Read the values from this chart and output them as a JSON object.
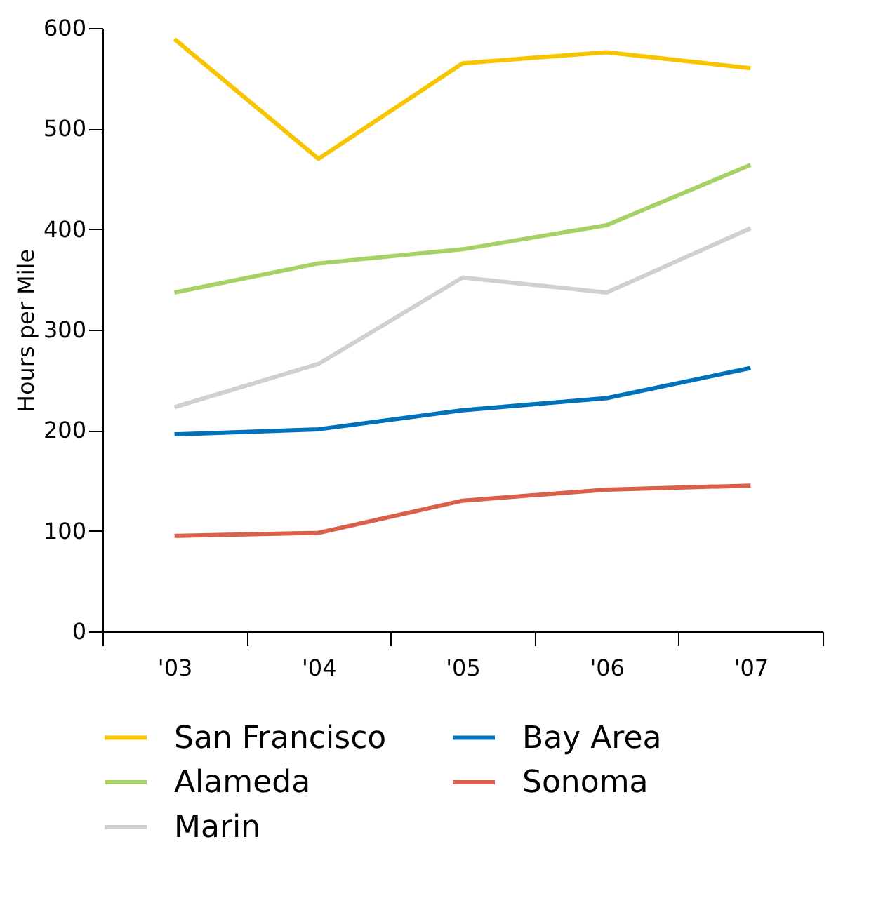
{
  "chart_data": {
    "type": "line",
    "ylabel": "Hours per Mile",
    "categories": [
      "'03",
      "'04",
      "'05",
      "'06",
      "'07"
    ],
    "series": [
      {
        "name": "San Francisco",
        "color": "#f7c500",
        "values": [
          589,
          470,
          565,
          576,
          560
        ]
      },
      {
        "name": "Bay Area",
        "color": "#0072bc",
        "values": [
          196,
          201,
          220,
          232,
          262
        ]
      },
      {
        "name": "Alameda",
        "color": "#a6d265",
        "values": [
          337,
          366,
          380,
          404,
          464
        ]
      },
      {
        "name": "Sonoma",
        "color": "#d9604b",
        "values": [
          95,
          98,
          130,
          141,
          145
        ]
      },
      {
        "name": "Marin",
        "color": "#d0d0d0",
        "values": [
          223,
          266,
          352,
          337,
          401
        ]
      }
    ],
    "ylim": [
      0,
      600
    ],
    "yticks": [
      0,
      100,
      200,
      300,
      400,
      500,
      600
    ],
    "grid": false,
    "legend": "bottom"
  }
}
